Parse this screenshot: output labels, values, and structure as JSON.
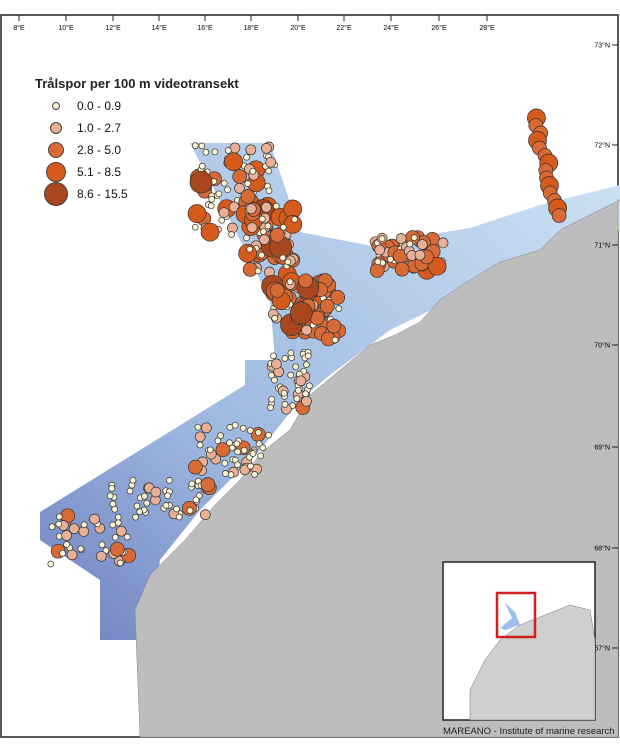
{
  "legend": {
    "title": "Trålspor per 100 m videotransekt",
    "classes": [
      {
        "label": "0.0 - 0.9",
        "color": "#fbf3d2"
      },
      {
        "label": "1.0 - 2.7",
        "color": "#e8b096"
      },
      {
        "label": "2.8 - 5.0",
        "color": "#d86a36"
      },
      {
        "label": "5.1 - 8.5",
        "color": "#d65a1c"
      },
      {
        "label": "8.6 - 15.5",
        "color": "#a9471f"
      }
    ]
  },
  "longitude_labels": [
    "8°E",
    "10°E",
    "12°E",
    "14°E",
    "16°E",
    "18°E",
    "20°E",
    "22°E",
    "24°E",
    "26°E",
    "28°E"
  ],
  "latitude_labels": [
    "73°N",
    "72°N",
    "71°N",
    "70°N",
    "69°N",
    "68°N",
    "67°N"
  ],
  "caption": "MAREANO - Institute of marine research",
  "colors": {
    "land": "#bdbdbd",
    "survey_shallow": "#c6ddf0",
    "survey_deep": "#6f7fbf",
    "inset_frame": "#d02020"
  }
}
